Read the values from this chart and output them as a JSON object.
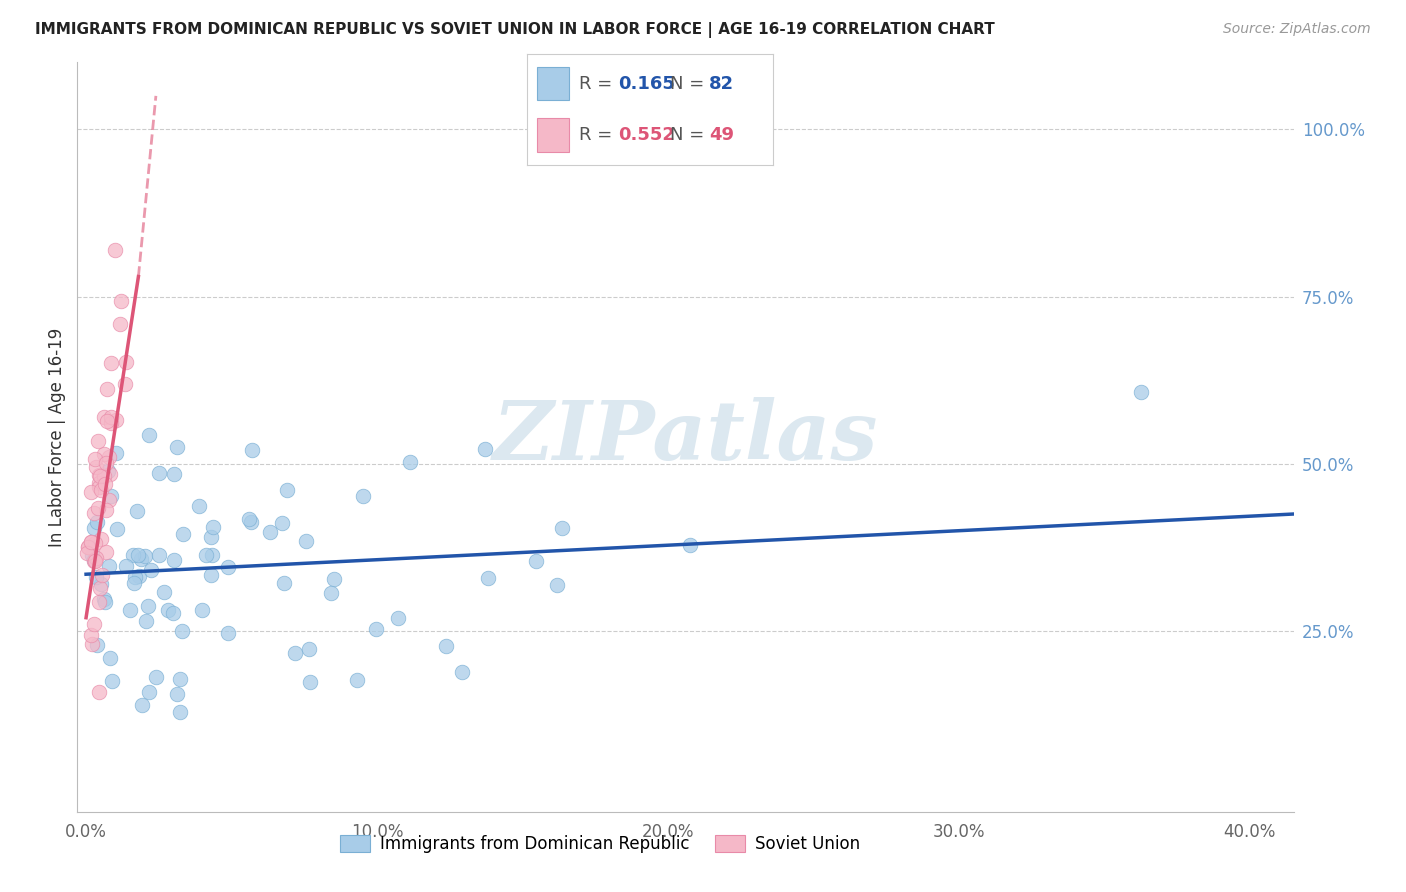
{
  "title": "IMMIGRANTS FROM DOMINICAN REPUBLIC VS SOVIET UNION IN LABOR FORCE | AGE 16-19 CORRELATION CHART",
  "source": "Source: ZipAtlas.com",
  "ylabel": "In Labor Force | Age 16-19",
  "x_tick_labels": [
    "0.0%",
    "10.0%",
    "20.0%",
    "30.0%",
    "40.0%"
  ],
  "x_tick_vals": [
    0.0,
    0.1,
    0.2,
    0.3,
    0.4
  ],
  "y_tick_labels": [
    "25.0%",
    "50.0%",
    "75.0%",
    "100.0%"
  ],
  "y_tick_vals": [
    0.25,
    0.5,
    0.75,
    1.0
  ],
  "xlim": [
    -0.003,
    0.415
  ],
  "ylim": [
    -0.02,
    1.1
  ],
  "legend1_label": "Immigrants from Dominican Republic",
  "legend2_label": "Soviet Union",
  "r1": 0.165,
  "n1": 82,
  "r2": 0.552,
  "n2": 49,
  "blue_color": "#a8cce8",
  "blue_edge_color": "#7aafd4",
  "pink_color": "#f5b8c8",
  "pink_edge_color": "#e88aa8",
  "blue_line_color": "#2255aa",
  "pink_line_color": "#dd5577",
  "watermark": "ZIPatlas",
  "blue_trend_x0": 0.0,
  "blue_trend_x1": 0.415,
  "blue_trend_y0": 0.335,
  "blue_trend_y1": 0.425,
  "pink_trend_solid_x0": 0.0,
  "pink_trend_solid_x1": 0.018,
  "pink_trend_solid_y0": 0.27,
  "pink_trend_solid_y1": 0.78,
  "pink_trend_dash_x0": 0.018,
  "pink_trend_dash_x1": 0.024,
  "pink_trend_dash_y0": 0.78,
  "pink_trend_dash_y1": 1.05,
  "title_fontsize": 11,
  "source_fontsize": 10
}
